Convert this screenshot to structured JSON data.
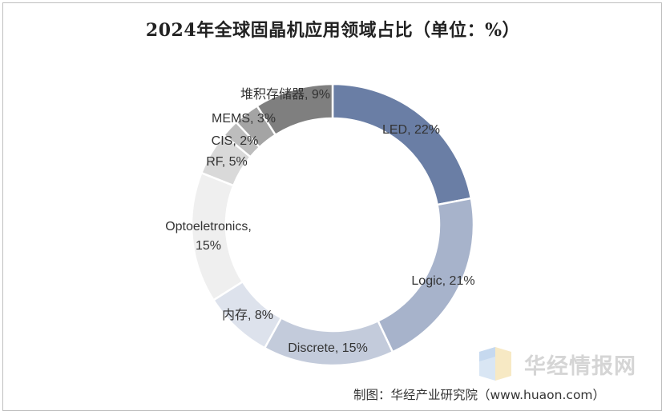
{
  "chart_data": {
    "type": "pie",
    "title": "2024年全球固晶机应用领域占比（单位：%）",
    "unit": "%",
    "categories": [
      "LED",
      "Logic",
      "Discrete",
      "内存",
      "Optoeletronics",
      "RF",
      "CIS",
      "MEMS",
      "堆积存储器"
    ],
    "values": [
      22,
      21,
      15,
      8,
      15,
      5,
      2,
      3,
      9
    ],
    "labels": [
      "LED, 22%",
      "Logic, 21%",
      "Discrete, 15%",
      "内存, 8%",
      "Optoeletronics, 15%",
      "RF, 5%",
      "CIS, 2%",
      "MEMS, 3%",
      "堆积存储器, 9%"
    ],
    "colors": [
      "#6a7ea5",
      "#a7b3cb",
      "#c3cbdb",
      "#dde2ec",
      "#efefef",
      "#d9d9d9",
      "#bdbdbd",
      "#a4a4a4",
      "#7f7f7f"
    ]
  },
  "watermark": {
    "text": "华经情报网",
    "icon": "huajing-logo-icon"
  },
  "source": "制图：华经产业研究院（www.huaon.com）"
}
